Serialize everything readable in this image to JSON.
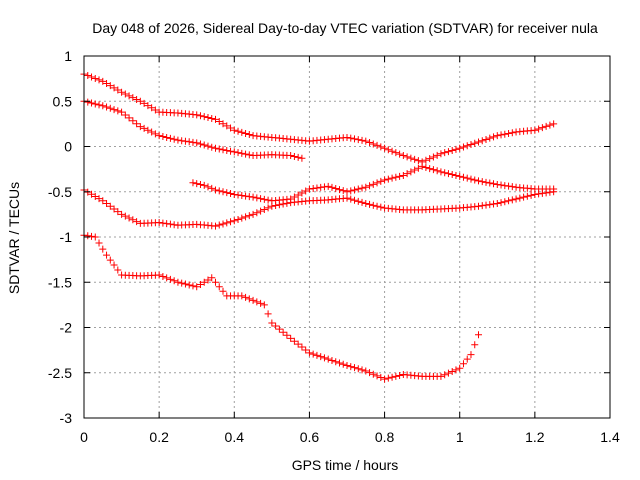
{
  "chart_data": {
    "type": "scatter",
    "title": "Day 048 of 2026, Sidereal Day-to-day VTEC variation (SDTVAR) for receiver nula",
    "xlabel": "GPS time / hours",
    "ylabel": "SDTVAR / TECUs",
    "xlim": [
      0,
      1.4
    ],
    "ylim": [
      -3,
      1
    ],
    "x_ticks": [
      0,
      0.2,
      0.4,
      0.6,
      0.8,
      1,
      1.2,
      1.4
    ],
    "x_tick_labels": [
      "0",
      "0.2",
      "0.4",
      "0.6",
      "0.8",
      "1",
      "1.2",
      "1.4"
    ],
    "y_ticks": [
      -3,
      -2.5,
      -2,
      -1.5,
      -1,
      -0.5,
      0,
      0.5,
      1
    ],
    "y_tick_labels": [
      "-3",
      "-2.5",
      "-2",
      "-1.5",
      "-1",
      "-0.5",
      "0",
      "0.5",
      "1"
    ],
    "grid": true,
    "marker": "+",
    "marker_color": "#ff0000",
    "series": [
      {
        "name": "series-1",
        "x": [
          0,
          0.05,
          0.1,
          0.15,
          0.2,
          0.25,
          0.3,
          0.35,
          0.4,
          0.45,
          0.5,
          0.55,
          0.6,
          0.65,
          0.7,
          0.75,
          0.8,
          0.85,
          0.9,
          0.95,
          1.0,
          1.05,
          1.1,
          1.15,
          1.2,
          1.25
        ],
        "y": [
          0.8,
          0.72,
          0.6,
          0.5,
          0.38,
          0.37,
          0.35,
          0.3,
          0.18,
          0.12,
          0.1,
          0.08,
          0.06,
          0.08,
          0.1,
          0.06,
          -0.02,
          -0.1,
          -0.17,
          -0.08,
          -0.02,
          0.05,
          0.12,
          0.16,
          0.18,
          0.25
        ]
      },
      {
        "name": "series-2",
        "x": [
          0,
          0.05,
          0.1,
          0.15,
          0.2,
          0.25,
          0.3,
          0.35,
          0.4,
          0.45,
          0.5,
          0.55,
          0.58
        ],
        "y": [
          0.5,
          0.45,
          0.38,
          0.22,
          0.12,
          0.07,
          0.04,
          -0.02,
          -0.06,
          -0.1,
          -0.09,
          -0.1,
          -0.13
        ]
      },
      {
        "name": "series-3",
        "x": [
          0.29,
          0.32,
          0.35,
          0.4,
          0.45,
          0.5,
          0.55,
          0.6,
          0.65,
          0.7,
          0.75,
          0.8,
          0.85,
          0.9,
          0.95,
          1.0,
          1.05,
          1.1,
          1.15,
          1.2,
          1.25
        ],
        "y": [
          -0.4,
          -0.43,
          -0.48,
          -0.53,
          -0.56,
          -0.6,
          -0.58,
          -0.47,
          -0.44,
          -0.5,
          -0.45,
          -0.37,
          -0.32,
          -0.22,
          -0.28,
          -0.33,
          -0.38,
          -0.42,
          -0.45,
          -0.47,
          -0.47
        ]
      },
      {
        "name": "series-4",
        "x": [
          0,
          0.05,
          0.1,
          0.15,
          0.2,
          0.25,
          0.3,
          0.35,
          0.4,
          0.45,
          0.5,
          0.55,
          0.6,
          0.65,
          0.7,
          0.75,
          0.8,
          0.85,
          0.9,
          0.95,
          1.0,
          1.05,
          1.1,
          1.15,
          1.2,
          1.25
        ],
        "y": [
          -0.48,
          -0.6,
          -0.75,
          -0.85,
          -0.84,
          -0.87,
          -0.86,
          -0.88,
          -0.82,
          -0.75,
          -0.66,
          -0.62,
          -0.6,
          -0.59,
          -0.57,
          -0.63,
          -0.68,
          -0.7,
          -0.7,
          -0.69,
          -0.68,
          -0.66,
          -0.63,
          -0.58,
          -0.53,
          -0.5
        ]
      },
      {
        "name": "series-5",
        "x": [
          0,
          0.03,
          0.06,
          0.1,
          0.15,
          0.2,
          0.25,
          0.3,
          0.34,
          0.38,
          0.42,
          0.45,
          0.48,
          0.5,
          0.55,
          0.6,
          0.65,
          0.7,
          0.75,
          0.8,
          0.85,
          0.9,
          0.95,
          1.0,
          1.03,
          1.05
        ],
        "y": [
          -0.98,
          -1.0,
          -1.2,
          -1.42,
          -1.43,
          -1.42,
          -1.5,
          -1.55,
          -1.45,
          -1.65,
          -1.65,
          -1.7,
          -1.75,
          -1.95,
          -2.12,
          -2.28,
          -2.35,
          -2.42,
          -2.48,
          -2.57,
          -2.52,
          -2.54,
          -2.54,
          -2.45,
          -2.3,
          -2.08
        ]
      }
    ]
  }
}
